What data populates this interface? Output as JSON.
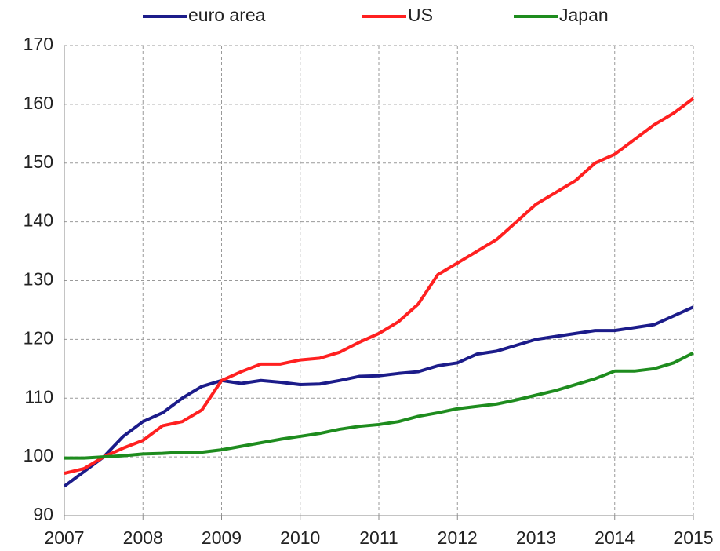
{
  "chart_data": {
    "type": "line",
    "x": [
      2007,
      2007.25,
      2007.5,
      2007.75,
      2008,
      2008.25,
      2008.5,
      2008.75,
      2009,
      2009.25,
      2009.5,
      2009.75,
      2010,
      2010.25,
      2010.5,
      2010.75,
      2011,
      2011.25,
      2011.5,
      2011.75,
      2012,
      2012.25,
      2012.5,
      2012.75,
      2013,
      2013.25,
      2013.5,
      2013.75,
      2014,
      2014.25,
      2014.5,
      2014.75,
      2015
    ],
    "series": [
      {
        "name": "euro area",
        "color": "#1c1c8a",
        "values": [
          95,
          97.5,
          100,
          103.5,
          106,
          107.5,
          110,
          112,
          113,
          112.5,
          113,
          112.7,
          112.3,
          112.4,
          113,
          113.7,
          113.8,
          114.2,
          114.5,
          115.5,
          116,
          117.5,
          118,
          119,
          120,
          120.5,
          121,
          121.5,
          121.5,
          122,
          122.5,
          124,
          125.5
        ]
      },
      {
        "name": "US",
        "color": "#ff2020",
        "values": [
          97.2,
          98,
          100,
          101.5,
          102.8,
          105.3,
          106,
          108,
          113,
          114.5,
          115.8,
          115.8,
          116.5,
          116.8,
          117.8,
          119.5,
          121,
          123,
          126,
          131,
          133,
          135,
          137,
          140,
          143,
          145,
          147,
          150,
          151.5,
          154,
          156.5,
          158.5,
          161
        ]
      },
      {
        "name": "Japan",
        "color": "#1e8c1e",
        "values": [
          99.8,
          99.8,
          100,
          100.2,
          100.5,
          100.6,
          100.8,
          100.8,
          101.2,
          101.8,
          102.4,
          103,
          103.5,
          104,
          104.7,
          105.2,
          105.5,
          106,
          106.9,
          107.5,
          108.2,
          108.6,
          109,
          109.7,
          110.5,
          111.3,
          112.3,
          113.3,
          114.6,
          114.6,
          115,
          116,
          117.7
        ]
      }
    ],
    "xlim": [
      2007,
      2015
    ],
    "xticks": [
      2007,
      2008,
      2009,
      2010,
      2011,
      2012,
      2013,
      2014,
      2015
    ],
    "ylim": [
      90,
      170
    ],
    "yticks": [
      90,
      100,
      110,
      120,
      130,
      140,
      150,
      160,
      170
    ],
    "grid": true,
    "legend": "top"
  }
}
